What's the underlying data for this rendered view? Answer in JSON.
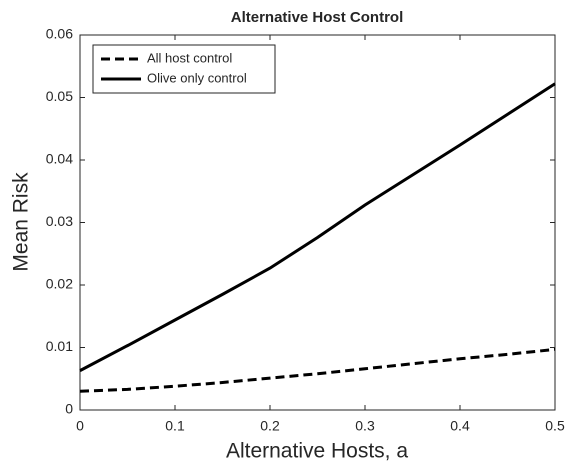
{
  "chart_data": {
    "type": "line",
    "title": "Alternative Host Control",
    "x_label": "Alternative Hosts, a",
    "y_label": "Mean Risk",
    "x": [
      0,
      0.05,
      0.1,
      0.15,
      0.2,
      0.25,
      0.3,
      0.35,
      0.4,
      0.45,
      0.5
    ],
    "series": [
      {
        "name": "All host control",
        "color": "#000000",
        "dash": true,
        "values": [
          0.003,
          0.0033,
          0.0038,
          0.0044,
          0.0051,
          0.0058,
          0.0066,
          0.0074,
          0.0082,
          0.0089,
          0.0097
        ]
      },
      {
        "name": "Olive only control",
        "color": "#000000",
        "dash": false,
        "values": [
          0.0063,
          0.0103,
          0.0144,
          0.0185,
          0.0227,
          0.0276,
          0.0328,
          0.0376,
          0.0424,
          0.0473,
          0.0522
        ]
      }
    ],
    "xlim": [
      0,
      0.5
    ],
    "xticks": [
      0,
      0.1,
      0.2,
      0.3,
      0.4,
      0.5
    ],
    "ylim": [
      0,
      0.06
    ],
    "yticks": [
      0,
      0.01,
      0.02,
      0.03,
      0.04,
      0.05,
      0.06
    ],
    "grid": false,
    "legend": "upper left"
  }
}
